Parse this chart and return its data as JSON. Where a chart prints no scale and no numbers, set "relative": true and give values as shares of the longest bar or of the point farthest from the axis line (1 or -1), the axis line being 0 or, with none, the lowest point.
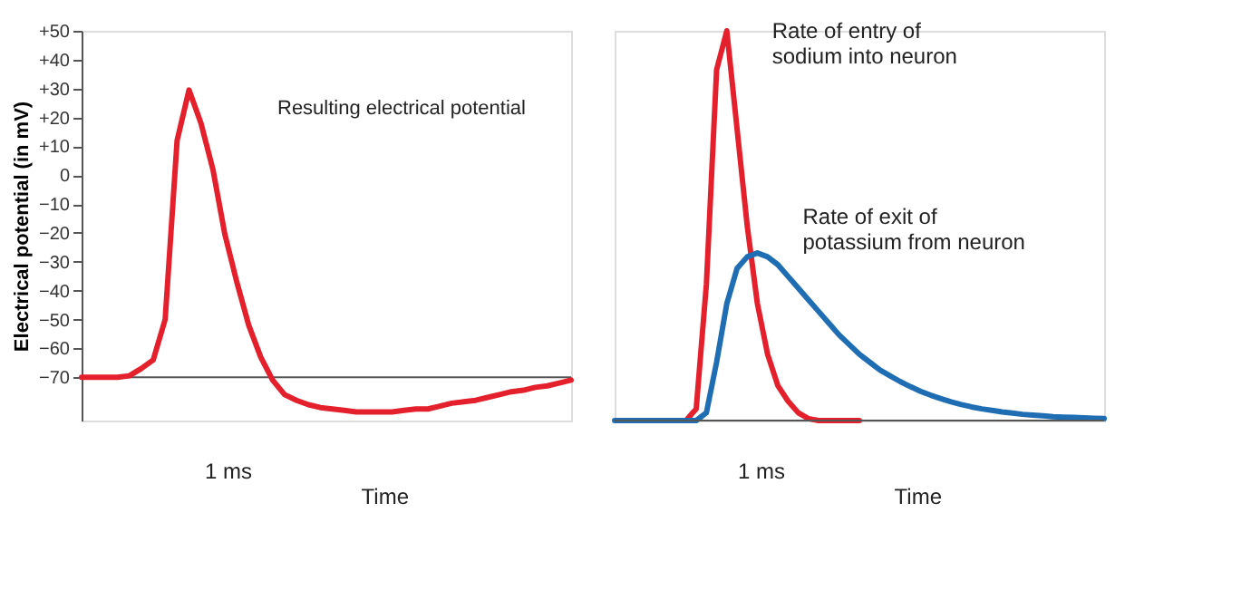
{
  "chart_data": [
    {
      "type": "line",
      "ylabel": "Electrical potential (in mV)",
      "categories": [
        null,
        null,
        null,
        null,
        null,
        null,
        null,
        null,
        null,
        null,
        null,
        null,
        null,
        null,
        null,
        null,
        null,
        null,
        null,
        null,
        null,
        null,
        null,
        null,
        null,
        null,
        null,
        null,
        null,
        null,
        null,
        null,
        null,
        null,
        null,
        null,
        null,
        null,
        null,
        null,
        null,
        null
      ],
      "series": [
        {
          "color": "#e3202b",
          "values": [
            -70,
            -70,
            -70,
            -70,
            -69.5,
            -67,
            -64,
            -50,
            12,
            29.5,
            18,
            2,
            -20.5,
            -37,
            -52,
            -63,
            -71,
            -76,
            -78,
            -79.5,
            -80.5,
            -81,
            -81.5,
            -82,
            -82,
            -82,
            -82,
            -81.5,
            -81,
            -81,
            -80,
            -79,
            -78.5,
            -78,
            -77,
            -76,
            -75,
            -74.5,
            -73.5,
            -73,
            -72,
            -71
          ]
        }
      ],
      "ylim": [
        -85,
        50
      ],
      "yticks": [
        {
          "value": 50,
          "label": "+50"
        },
        {
          "value": 40,
          "label": "+40"
        },
        {
          "value": 30,
          "label": "+30"
        },
        {
          "value": 20,
          "label": "+20"
        },
        {
          "value": 10,
          "label": "+10"
        },
        0,
        {
          "value": -10,
          "label": "−10"
        },
        {
          "value": -20,
          "label": "−20"
        },
        {
          "value": -30,
          "label": "−30"
        },
        {
          "value": -40,
          "label": "−40"
        },
        {
          "value": -50,
          "label": "−50"
        },
        {
          "value": -60,
          "label": "−60"
        },
        {
          "value": -70,
          "label": "−70"
        }
      ],
      "ref_lines": [
        {
          "axis": "y",
          "value": -70,
          "color": "#555555"
        }
      ],
      "tick_labels": "y",
      "marker": "none",
      "line_style": "solid",
      "annotations": [
        "Resulting electrical potential",
        "1 ms",
        "Time"
      ]
    },
    {
      "type": "line",
      "relative": true,
      "categories": [
        null,
        null,
        null,
        null,
        null,
        null,
        null,
        null,
        null,
        null,
        null,
        null,
        null,
        null,
        null,
        null,
        null,
        null,
        null,
        null,
        null,
        null,
        null,
        null,
        null,
        null,
        null,
        null,
        null,
        null,
        null,
        null,
        null,
        null,
        null,
        null,
        null,
        null,
        null,
        null,
        null,
        null,
        null,
        null,
        null,
        null,
        null,
        null,
        null
      ],
      "series": [
        {
          "name": "Rate of entry of sodium into neuron",
          "color": "#e3202b",
          "values": [
            null,
            null,
            null,
            null,
            null,
            0,
            0,
            0,
            0.03,
            0.35,
            0.9,
            1,
            0.75,
            0.5,
            0.3,
            0.17,
            0.09,
            0.05,
            0.02,
            0.005,
            0,
            0,
            0,
            0,
            0,
            null,
            null,
            null,
            null,
            null,
            null,
            null,
            null,
            null,
            null,
            null,
            null,
            null,
            null,
            null,
            null,
            null,
            null,
            null,
            null,
            null,
            null,
            null,
            null
          ]
        },
        {
          "name": "Rate of exit of potassium from neuron",
          "color": "#1f6db3",
          "values": [
            0,
            0,
            0,
            0,
            0,
            0,
            0,
            0,
            0,
            0.02,
            0.15,
            0.3,
            0.39,
            0.42,
            0.43,
            0.42,
            0.4,
            0.37,
            0.34,
            0.31,
            0.28,
            0.25,
            0.22,
            0.195,
            0.17,
            0.15,
            0.13,
            0.115,
            0.1,
            0.087,
            0.075,
            0.065,
            0.056,
            0.048,
            0.041,
            0.035,
            0.03,
            0.026,
            0.022,
            0.019,
            0.016,
            0.014,
            0.012,
            0.01,
            0.009,
            0.008,
            0.007,
            0.006,
            0.005
          ]
        }
      ],
      "tick_labels": false,
      "marker": "none",
      "line_style": "solid",
      "annotations": [
        "1 ms",
        "Time"
      ]
    }
  ]
}
